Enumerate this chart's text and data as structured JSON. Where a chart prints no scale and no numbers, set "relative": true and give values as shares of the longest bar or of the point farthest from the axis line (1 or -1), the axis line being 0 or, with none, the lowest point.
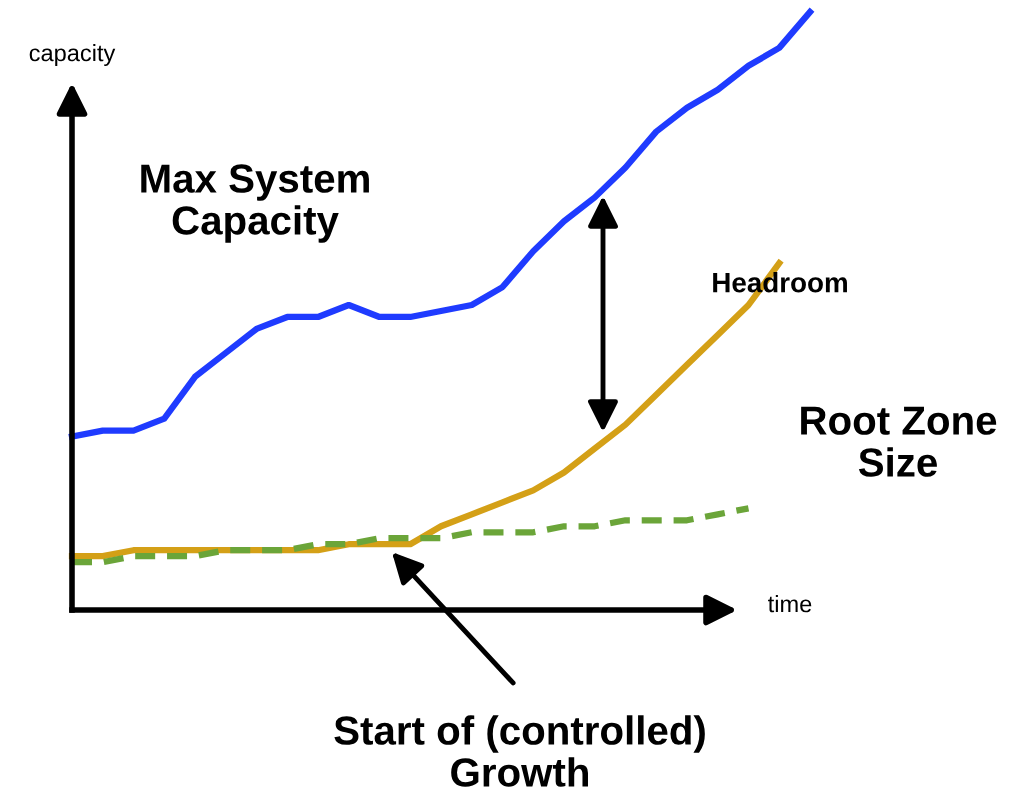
{
  "chart_data": {
    "type": "line",
    "relative": true,
    "xlabel": "time",
    "ylabel": "capacity",
    "categories": [
      null,
      null,
      null,
      null,
      null,
      null,
      null,
      null,
      null,
      null,
      null,
      null,
      null,
      null,
      null,
      null,
      null,
      null,
      null,
      null,
      null,
      null,
      null,
      null,
      null
    ],
    "series": [
      {
        "color": "#1f3bff",
        "line_style": "solid",
        "values": [
          0.29,
          0.3,
          0.3,
          0.32,
          0.39,
          0.43,
          0.47,
          0.49,
          0.49,
          0.51,
          0.49,
          0.49,
          0.5,
          0.51,
          0.54,
          0.6,
          0.65,
          0.69,
          0.74,
          0.8,
          0.84,
          0.87,
          0.91,
          0.94,
          1.0
        ]
      },
      {
        "color": "#d4a017",
        "line_style": "solid",
        "values": [
          0.09,
          0.09,
          0.1,
          0.1,
          0.1,
          0.1,
          0.1,
          0.1,
          0.1,
          0.11,
          0.11,
          0.11,
          0.14,
          0.16,
          0.18,
          0.2,
          0.23,
          0.27,
          0.31,
          0.36,
          0.41,
          0.46,
          0.51,
          0.58,
          null
        ]
      },
      {
        "color": "#6ba539",
        "line_style": "dashed",
        "values": [
          0.08,
          0.08,
          0.09,
          0.09,
          0.09,
          0.1,
          0.1,
          0.1,
          0.11,
          0.11,
          0.12,
          0.12,
          0.12,
          0.13,
          0.13,
          0.13,
          0.14,
          0.14,
          0.15,
          0.15,
          0.15,
          0.16,
          0.17,
          null,
          null
        ]
      }
    ],
    "annotations": [
      "Max System\nCapacity",
      "Headroom",
      "Root Zone\nSize",
      "Start of (controlled)\nGrowth"
    ]
  }
}
